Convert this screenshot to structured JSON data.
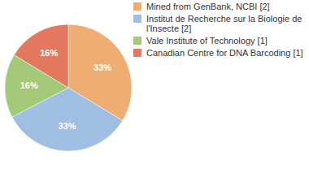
{
  "chart_data": {
    "type": "pie",
    "categories": [
      "Mined from GenBank, NCBI [2]",
      "Institut de Recherche sur la Biologie de l'Insecte [2]",
      "Vale Institute of Technology [1]",
      "Canadian Centre for DNA Barcoding [1]"
    ],
    "values": [
      33,
      33,
      16,
      16
    ],
    "value_labels": [
      "33%",
      "33%",
      "16%",
      "16%"
    ],
    "colors": [
      "#f0ad72",
      "#a0bde2",
      "#a2c878",
      "#e3785e"
    ],
    "data_labels": true,
    "legend": "top-right"
  }
}
